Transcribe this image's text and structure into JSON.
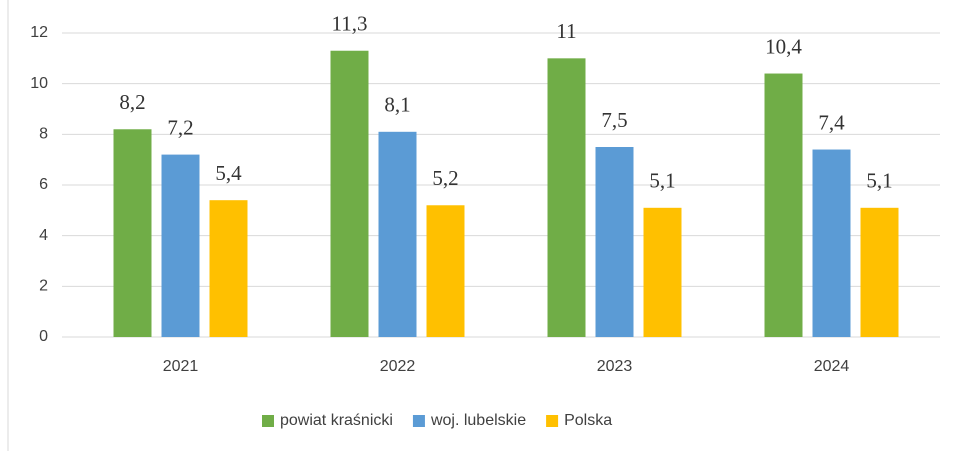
{
  "chart_data": {
    "type": "bar",
    "categories": [
      "2021",
      "2022",
      "2023",
      "2024"
    ],
    "series": [
      {
        "name": "powiat kraśnicki",
        "color": "#70ad47",
        "values": [
          8.2,
          11.3,
          11,
          10.4
        ],
        "value_labels": [
          "8,2",
          "11,3",
          "11",
          "10,4"
        ]
      },
      {
        "name": "woj. lubelskie",
        "color": "#5b9bd5",
        "values": [
          7.2,
          8.1,
          7.5,
          7.4
        ],
        "value_labels": [
          "7,2",
          "8,1",
          "7,5",
          "7,4"
        ]
      },
      {
        "name": "Polska",
        "color": "#ffc000",
        "values": [
          5.4,
          5.2,
          5.1,
          5.1
        ],
        "value_labels": [
          "5,4",
          "5,2",
          "5,1",
          "5,1"
        ]
      }
    ],
    "ylim": [
      0,
      12
    ],
    "yticks": [
      0,
      2,
      4,
      6,
      8,
      10,
      12
    ],
    "grid": true,
    "legend": "bottom"
  }
}
